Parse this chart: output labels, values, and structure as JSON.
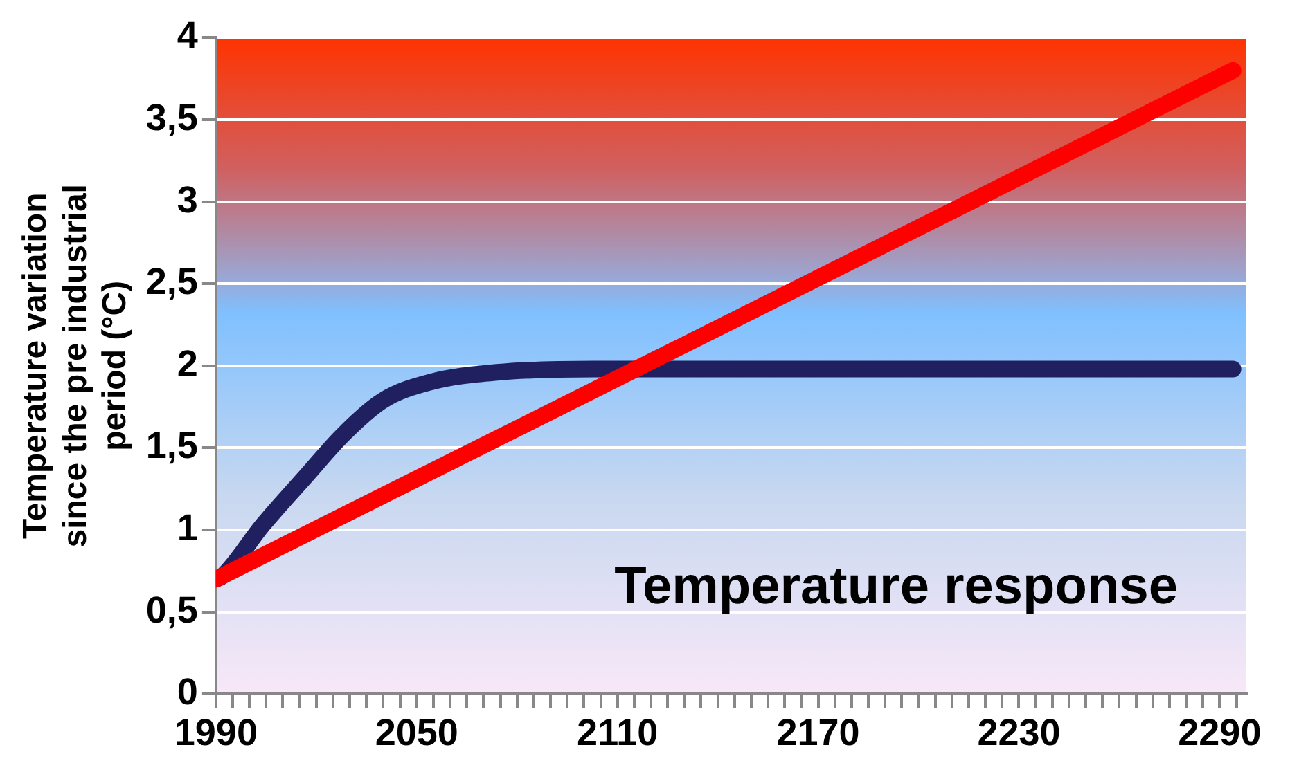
{
  "chart_data": {
    "type": "line",
    "ylabel": "Temperature variation\nsince the pre industrial\nperiod (°C)",
    "annotations": [
      "Temperature response"
    ],
    "series": [
      {
        "color": "#ff0000",
        "x": [
          1990,
          2294
        ],
        "values": [
          0.7,
          3.8
        ]
      },
      {
        "color": "#202060",
        "x": [
          1990,
          1992,
          2004,
          2017,
          2028,
          2040,
          2054,
          2074,
          2103,
          2150,
          2294
        ],
        "values": [
          0.7,
          0.72,
          1.03,
          1.33,
          1.58,
          1.79,
          1.9,
          1.96,
          1.98,
          1.98,
          1.98
        ]
      }
    ],
    "xlim": [
      1990,
      2298
    ],
    "xticks": [
      1990,
      {
        "value": 1995,
        "label": null
      },
      {
        "value": 2000,
        "label": null
      },
      {
        "value": 2005,
        "label": null
      },
      {
        "value": 2010,
        "label": null
      },
      {
        "value": 2015,
        "label": null
      },
      {
        "value": 2020,
        "label": null
      },
      {
        "value": 2025,
        "label": null
      },
      {
        "value": 2030,
        "label": null
      },
      {
        "value": 2035,
        "label": null
      },
      {
        "value": 2040,
        "label": null
      },
      {
        "value": 2045,
        "label": null
      },
      2050,
      {
        "value": 2055,
        "label": null
      },
      {
        "value": 2060,
        "label": null
      },
      {
        "value": 2065,
        "label": null
      },
      {
        "value": 2070,
        "label": null
      },
      {
        "value": 2075,
        "label": null
      },
      {
        "value": 2080,
        "label": null
      },
      {
        "value": 2085,
        "label": null
      },
      {
        "value": 2090,
        "label": null
      },
      {
        "value": 2095,
        "label": null
      },
      {
        "value": 2100,
        "label": null
      },
      {
        "value": 2105,
        "label": null
      },
      2110,
      {
        "value": 2115,
        "label": null
      },
      {
        "value": 2120,
        "label": null
      },
      {
        "value": 2125,
        "label": null
      },
      {
        "value": 2130,
        "label": null
      },
      {
        "value": 2135,
        "label": null
      },
      {
        "value": 2140,
        "label": null
      },
      {
        "value": 2145,
        "label": null
      },
      {
        "value": 2150,
        "label": null
      },
      {
        "value": 2155,
        "label": null
      },
      {
        "value": 2160,
        "label": null
      },
      {
        "value": 2165,
        "label": null
      },
      2170,
      {
        "value": 2175,
        "label": null
      },
      {
        "value": 2180,
        "label": null
      },
      {
        "value": 2185,
        "label": null
      },
      {
        "value": 2190,
        "label": null
      },
      {
        "value": 2195,
        "label": null
      },
      {
        "value": 2200,
        "label": null
      },
      {
        "value": 2205,
        "label": null
      },
      {
        "value": 2210,
        "label": null
      },
      {
        "value": 2215,
        "label": null
      },
      {
        "value": 2220,
        "label": null
      },
      {
        "value": 2225,
        "label": null
      },
      2230,
      {
        "value": 2235,
        "label": null
      },
      {
        "value": 2240,
        "label": null
      },
      {
        "value": 2245,
        "label": null
      },
      {
        "value": 2250,
        "label": null
      },
      {
        "value": 2255,
        "label": null
      },
      {
        "value": 2260,
        "label": null
      },
      {
        "value": 2265,
        "label": null
      },
      {
        "value": 2270,
        "label": null
      },
      {
        "value": 2275,
        "label": null
      },
      {
        "value": 2280,
        "label": null
      },
      {
        "value": 2285,
        "label": null
      },
      2290,
      {
        "value": 2295,
        "label": null
      }
    ],
    "ylim": [
      0,
      4
    ],
    "yticks": [
      0,
      {
        "value": 0.5,
        "label": "0,5"
      },
      1,
      {
        "value": 1.5,
        "label": "1,5"
      },
      2,
      {
        "value": 2.5,
        "label": "2,5"
      },
      3,
      {
        "value": 3.5,
        "label": "3,5"
      },
      4
    ],
    "grid": "y",
    "legend": false,
    "marker": "none",
    "line_style": "solid"
  }
}
